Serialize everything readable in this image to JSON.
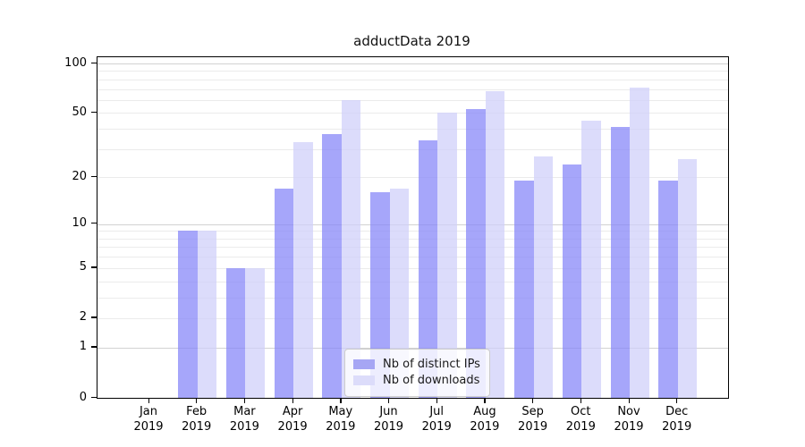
{
  "chart": {
    "title": "adductData 2019",
    "legend": {
      "items": [
        {
          "label": "Nb of distinct IPs",
          "swatch_color": "#a6a6f4"
        },
        {
          "label": "Nb of downloads",
          "swatch_color": "#dcdcfa"
        }
      ]
    },
    "colors": {
      "ips_bar": "rgba(132,132,248,0.72)",
      "downloads_bar": "rgba(206,206,249,0.72)",
      "grid_major": "#d2d2d2",
      "grid_minor": "#ebebeb",
      "axis": "#000000"
    },
    "y_axis": {
      "tick_labels": [
        "100",
        "50",
        "20",
        "10",
        "5",
        "2",
        "1",
        "0"
      ],
      "tick_values": [
        100,
        50,
        20,
        10,
        5,
        2,
        1,
        0
      ],
      "major_grid_values": [
        1,
        10,
        100
      ],
      "minor_grid_values": [
        2,
        3,
        4,
        5,
        6,
        7,
        8,
        9,
        20,
        30,
        40,
        50,
        60,
        70,
        80,
        90
      ]
    },
    "x_axis": {
      "months": [
        "Jan",
        "Feb",
        "Mar",
        "Apr",
        "May",
        "Jun",
        "Jul",
        "Aug",
        "Sep",
        "Oct",
        "Nov",
        "Dec"
      ],
      "year": "2019"
    }
  },
  "chart_data": {
    "type": "bar",
    "title": "adductData 2019",
    "categories": [
      "Jan 2019",
      "Feb 2019",
      "Mar 2019",
      "Apr 2019",
      "May 2019",
      "Jun 2019",
      "Jul 2019",
      "Aug 2019",
      "Sep 2019",
      "Oct 2019",
      "Nov 2019",
      "Dec 2019"
    ],
    "series": [
      {
        "name": "Nb of distinct IPs",
        "color": "#a6a6f4",
        "values": [
          0,
          9,
          5,
          17,
          37,
          16,
          34,
          53,
          19,
          24,
          41,
          19
        ]
      },
      {
        "name": "Nb of downloads",
        "color": "#dcdcfa",
        "values": [
          0,
          9,
          5,
          33,
          60,
          17,
          50,
          68,
          27,
          45,
          71,
          26
        ]
      }
    ],
    "xlabel": "",
    "ylabel": "",
    "y_scale": "symlog (y proportional to ln(1+v))",
    "y_ticks": [
      0,
      1,
      2,
      5,
      10,
      20,
      50,
      100
    ],
    "ylim": [
      0,
      109
    ],
    "grid": true,
    "legend_position": "lower center"
  }
}
